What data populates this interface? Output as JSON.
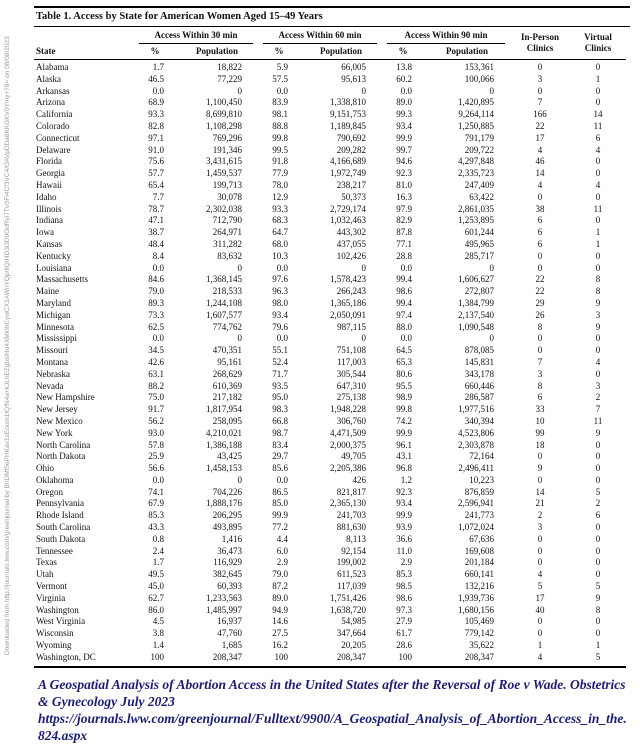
{
  "watermark": {
    "text": "Downloaded from http://journals.lww.com/greenjournal by BhDMf5ePHKav1zEoum1tQfN4a+kJLhEZgbsIHo4XMi0hCywCX1AWnYQp/IlQrHD3i3D0OdRyi7TvSFl4Cf3VC4/OAVpDDa8KKGKV0Ymy+78= on 08/08/2023"
  },
  "table": {
    "title_label": "Table 1.",
    "title_rest": " Access by State for American Women Aged 15–49 Years",
    "group_headers": [
      "Access Within 30 min",
      "Access Within 60 min",
      "Access Within 90 min"
    ],
    "columns": {
      "state": "State",
      "pct": "%",
      "population": "Population",
      "in_person": "In-Person Clinics",
      "virtual": "Virtual Clinics"
    },
    "rows": [
      [
        "Alabama",
        "1.7",
        "18,822",
        "5.9",
        "66,005",
        "13.8",
        "153,361",
        "0",
        "0"
      ],
      [
        "Alaska",
        "46.5",
        "77,229",
        "57.5",
        "95,613",
        "60.2",
        "100,066",
        "3",
        "1"
      ],
      [
        "Arkansas",
        "0.0",
        "0",
        "0.0",
        "0",
        "0.0",
        "0",
        "0",
        "0"
      ],
      [
        "Arizona",
        "68.9",
        "1,100,450",
        "83.9",
        "1,338,810",
        "89.0",
        "1,420,895",
        "7",
        "0"
      ],
      [
        "California",
        "93.3",
        "8,699,810",
        "98.1",
        "9,151,753",
        "99.3",
        "9,264,114",
        "166",
        "14"
      ],
      [
        "Colorado",
        "82.8",
        "1,108,298",
        "88.8",
        "1,189,845",
        "93.4",
        "1,250,885",
        "22",
        "11"
      ],
      [
        "Connecticut",
        "97.1",
        "769,296",
        "99.8",
        "790,692",
        "99.9",
        "791,179",
        "17",
        "6"
      ],
      [
        "Delaware",
        "91.0",
        "191,346",
        "99.5",
        "209,282",
        "99.7",
        "209,722",
        "4",
        "4"
      ],
      [
        "Florida",
        "75.6",
        "3,431,615",
        "91.8",
        "4,166,689",
        "94.6",
        "4,297,848",
        "46",
        "0"
      ],
      [
        "Georgia",
        "57.7",
        "1,459,537",
        "77.9",
        "1,972,749",
        "92.3",
        "2,335,723",
        "14",
        "0"
      ],
      [
        "Hawaii",
        "65.4",
        "199,713",
        "78.0",
        "238,217",
        "81.0",
        "247,409",
        "4",
        "4"
      ],
      [
        "Idaho",
        "7.7",
        "30,078",
        "12.9",
        "50,373",
        "16.3",
        "63,422",
        "0",
        "0"
      ],
      [
        "Illinois",
        "78.7",
        "2,302,038",
        "93.3",
        "2,729,174",
        "97.9",
        "2,861,035",
        "38",
        "11"
      ],
      [
        "Indiana",
        "47.1",
        "712,790",
        "68.3",
        "1,032,463",
        "82.9",
        "1,253,895",
        "6",
        "0"
      ],
      [
        "Iowa",
        "38.7",
        "264,971",
        "64.7",
        "443,302",
        "87.8",
        "601,244",
        "6",
        "1"
      ],
      [
        "Kansas",
        "48.4",
        "311,282",
        "68.0",
        "437,055",
        "77.1",
        "495,965",
        "6",
        "1"
      ],
      [
        "Kentucky",
        "8.4",
        "83,632",
        "10.3",
        "102,426",
        "28.8",
        "285,717",
        "0",
        "0"
      ],
      [
        "Louisiana",
        "0.0",
        "0",
        "0.0",
        "0",
        "0.0",
        "0",
        "0",
        "0"
      ],
      [
        "Massachusetts",
        "84.6",
        "1,368,145",
        "97.6",
        "1,578,423",
        "99.4",
        "1,606,627",
        "22",
        "8"
      ],
      [
        "Maine",
        "79.0",
        "218,533",
        "96.3",
        "266,243",
        "98.6",
        "272,807",
        "22",
        "8"
      ],
      [
        "Maryland",
        "89.3",
        "1,244,108",
        "98.0",
        "1,365,186",
        "99.4",
        "1,384,799",
        "29",
        "9"
      ],
      [
        "Michigan",
        "73.3",
        "1,607,577",
        "93.4",
        "2,050,091",
        "97.4",
        "2,137,540",
        "26",
        "3"
      ],
      [
        "Minnesota",
        "62.5",
        "774,762",
        "79.6",
        "987,115",
        "88.0",
        "1,090,548",
        "8",
        "9"
      ],
      [
        "Mississippi",
        "0.0",
        "0",
        "0.0",
        "0",
        "0.0",
        "0",
        "0",
        "0"
      ],
      [
        "Missouri",
        "34.5",
        "470,351",
        "55.1",
        "751,108",
        "64.5",
        "878,085",
        "0",
        "0"
      ],
      [
        "Montana",
        "42.6",
        "95,161",
        "52.4",
        "117,003",
        "65.3",
        "145,831",
        "7",
        "4"
      ],
      [
        "Nebraska",
        "63.1",
        "268,629",
        "71.7",
        "305,544",
        "80.6",
        "343,178",
        "3",
        "0"
      ],
      [
        "Nevada",
        "88.2",
        "610,369",
        "93.5",
        "647,310",
        "95.5",
        "660,446",
        "8",
        "3"
      ],
      [
        "New Hampshire",
        "75.0",
        "217,182",
        "95.0",
        "275,138",
        "98.9",
        "286,587",
        "6",
        "2"
      ],
      [
        "New Jersey",
        "91.7",
        "1,817,954",
        "98.3",
        "1,948,228",
        "99.8",
        "1,977,516",
        "33",
        "7"
      ],
      [
        "New Mexico",
        "56.2",
        "258,095",
        "66.8",
        "306,760",
        "74.2",
        "340,394",
        "10",
        "11"
      ],
      [
        "New York",
        "93.0",
        "4,210,021",
        "98.7",
        "4,471,509",
        "99.9",
        "4,523,806",
        "99",
        "9"
      ],
      [
        "North Carolina",
        "57.8",
        "1,386,188",
        "83.4",
        "2,000,375",
        "96.1",
        "2,303,878",
        "18",
        "0"
      ],
      [
        "North Dakota",
        "25.9",
        "43,425",
        "29.7",
        "49,705",
        "43.1",
        "72,164",
        "0",
        "0"
      ],
      [
        "Ohio",
        "56.6",
        "1,458,153",
        "85.6",
        "2,205,386",
        "96.8",
        "2,496,411",
        "9",
        "0"
      ],
      [
        "Oklahoma",
        "0.0",
        "0",
        "0.0",
        "426",
        "1.2",
        "10,223",
        "0",
        "0"
      ],
      [
        "Oregon",
        "74.1",
        "704,226",
        "86.5",
        "821,817",
        "92.3",
        "876,859",
        "14",
        "5"
      ],
      [
        "Pennsylvania",
        "67.9",
        "1,888,176",
        "85.0",
        "2,365,130",
        "93.4",
        "2,596,941",
        "21",
        "2"
      ],
      [
        "Rhode Island",
        "85.3",
        "206,295",
        "99.9",
        "241,703",
        "99.9",
        "241,773",
        "2",
        "6"
      ],
      [
        "South Carolina",
        "43.3",
        "493,895",
        "77.2",
        "881,630",
        "93.9",
        "1,072,024",
        "3",
        "0"
      ],
      [
        "South Dakota",
        "0.8",
        "1,416",
        "4.4",
        "8,113",
        "36.6",
        "67,636",
        "0",
        "0"
      ],
      [
        "Tennessee",
        "2.4",
        "36,473",
        "6.0",
        "92,154",
        "11.0",
        "169,608",
        "0",
        "0"
      ],
      [
        "Texas",
        "1.7",
        "116,929",
        "2.9",
        "199,002",
        "2.9",
        "201,184",
        "0",
        "0"
      ],
      [
        "Utah",
        "49.5",
        "382,645",
        "79.0",
        "611,523",
        "85.3",
        "660,141",
        "4",
        "0"
      ],
      [
        "Vermont",
        "45.0",
        "60,393",
        "87.2",
        "117,039",
        "98.5",
        "132,216",
        "5",
        "5"
      ],
      [
        "Virginia",
        "62.7",
        "1,233,563",
        "89.0",
        "1,751,426",
        "98.6",
        "1,939,736",
        "17",
        "9"
      ],
      [
        "Washington",
        "86.0",
        "1,485,997",
        "94.9",
        "1,638,720",
        "97.3",
        "1,680,156",
        "40",
        "8"
      ],
      [
        "West Virginia",
        "4.5",
        "16,937",
        "14.6",
        "54,985",
        "27.9",
        "105,469",
        "0",
        "0"
      ],
      [
        "Wisconsin",
        "3.8",
        "47,760",
        "27.5",
        "347,664",
        "61.7",
        "779,142",
        "0",
        "0"
      ],
      [
        "Wyoming",
        "1.4",
        "1,685",
        "16.2",
        "20,205",
        "28.6",
        "35,622",
        "1",
        "1"
      ],
      [
        "Washington, DC",
        "100",
        "208,347",
        "100",
        "208,347",
        "100",
        "208,347",
        "4",
        "5"
      ]
    ]
  },
  "citation": {
    "line1": "A Geospatial Analysis of Abortion Access in the United States after the Reversal of Roe v Wade. Obstetrics & Gynecology July 2023",
    "url": "https://journals.lww.com/greenjournal/Fulltext/9900/A_Geospatial_Analysis_of_Abortion_Access_in_the.824.aspx",
    "color": "#1b1b75"
  }
}
